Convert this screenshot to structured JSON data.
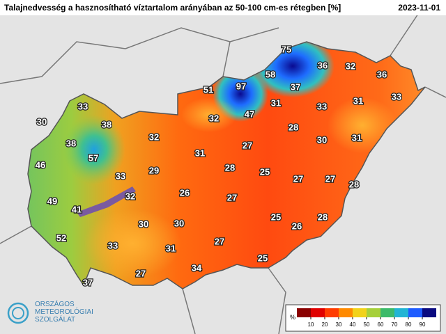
{
  "header": {
    "title": "Talajnedvesség a hasznosítható víztartalom arányában az 50-100 cm-es rétegben [%]",
    "date": "2023-11-01"
  },
  "stations": [
    75,
    36,
    32,
    36,
    58,
    51,
    97,
    37,
    33,
    33,
    31,
    31,
    33,
    47,
    30,
    38,
    32,
    28,
    32,
    38,
    31,
    27,
    30,
    31,
    57,
    46,
    29,
    28,
    25,
    33,
    27,
    27,
    28,
    32,
    26,
    27,
    49,
    41,
    25,
    26,
    28,
    30,
    30,
    52,
    33,
    27,
    31,
    25,
    34,
    27,
    37
  ],
  "legend": {
    "unit": "%",
    "ticks": [
      10,
      20,
      30,
      40,
      50,
      60,
      70,
      80,
      90
    ],
    "colors": [
      "#8a0000",
      "#e00000",
      "#ff3c00",
      "#ff8a00",
      "#f2d21a",
      "#a6d03a",
      "#3cba6a",
      "#22b4d4",
      "#1e5cff",
      "#0a0a80"
    ]
  },
  "logo": {
    "lines": [
      "ORSZÁGOS",
      "METEOROLÓGIAI",
      "SZOLGÁLAT"
    ]
  }
}
